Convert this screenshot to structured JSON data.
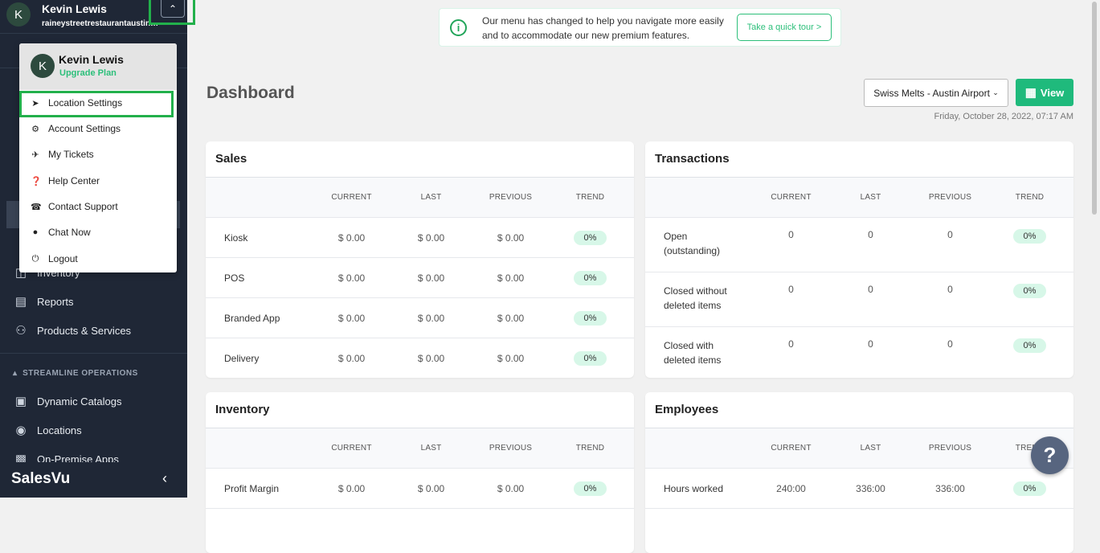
{
  "sidebar": {
    "user_name": "Kevin Lewis",
    "user_initial": "K",
    "account": "raineystreetrestaurantaustin@...",
    "items": [
      {
        "label": "Inventory",
        "icon": "inventory-icon"
      },
      {
        "label": "Reports",
        "icon": "reports-icon"
      },
      {
        "label": "Products & Services",
        "icon": "products-icon"
      }
    ],
    "section_streamline": "STREAMLINE OPERATIONS",
    "streamline_items": [
      {
        "label": "Dynamic Catalogs",
        "icon": "catalog-icon"
      },
      {
        "label": "Locations",
        "icon": "location-pin-icon"
      },
      {
        "label": "On-Premise Apps",
        "icon": "apps-icon"
      }
    ],
    "brand": "SalesVu"
  },
  "user_menu": {
    "name": "Kevin Lewis",
    "initial": "K",
    "upgrade": "Upgrade Plan",
    "items": [
      {
        "label": "Location Settings",
        "icon": "navigation-arrow-icon"
      },
      {
        "label": "Account Settings",
        "icon": "gear-icon"
      },
      {
        "label": "My Tickets",
        "icon": "ticket-icon"
      },
      {
        "label": "Help Center",
        "icon": "question-circle-icon"
      },
      {
        "label": "Contact Support",
        "icon": "phone-icon"
      },
      {
        "label": "Chat Now",
        "icon": "chat-bubble-icon"
      },
      {
        "label": "Logout",
        "icon": "power-icon"
      }
    ]
  },
  "banner": {
    "text": "Our menu has changed to help you navigate more easily and to accommodate our new premium features.",
    "button": "Take a quick tour >"
  },
  "header": {
    "title": "Dashboard",
    "location": "Swiss Melts - Austin Airport",
    "view": "View",
    "date": "Friday, October 28, 2022, 07:17 AM"
  },
  "columns": [
    "CURRENT",
    "LAST",
    "PREVIOUS",
    "TREND"
  ],
  "cards": [
    {
      "title": "Sales",
      "rows": [
        [
          "Kiosk",
          "$ 0.00",
          "$ 0.00",
          "$ 0.00",
          "0%"
        ],
        [
          "POS",
          "$ 0.00",
          "$ 0.00",
          "$ 0.00",
          "0%"
        ],
        [
          "Branded App",
          "$ 0.00",
          "$ 0.00",
          "$ 0.00",
          "0%"
        ],
        [
          "Delivery",
          "$ 0.00",
          "$ 0.00",
          "$ 0.00",
          "0%"
        ]
      ]
    },
    {
      "title": "Transactions",
      "rows": [
        [
          "Open (outstanding)",
          "0",
          "0",
          "0",
          "0%"
        ],
        [
          "Closed without deleted items",
          "0",
          "0",
          "0",
          "0%"
        ],
        [
          "Closed with deleted items",
          "0",
          "0",
          "0",
          "0%"
        ]
      ]
    },
    {
      "title": "Inventory",
      "rows": [
        [
          "Profit Margin",
          "$ 0.00",
          "$ 0.00",
          "$ 0.00",
          "0%"
        ]
      ]
    },
    {
      "title": "Employees",
      "rows": [
        [
          "Hours worked",
          "240:00",
          "336:00",
          "336:00",
          "0%"
        ]
      ]
    }
  ],
  "colors": {
    "accent": "#1fba7c",
    "sidebar": "#1f2736",
    "highlight": "#22b04b"
  }
}
